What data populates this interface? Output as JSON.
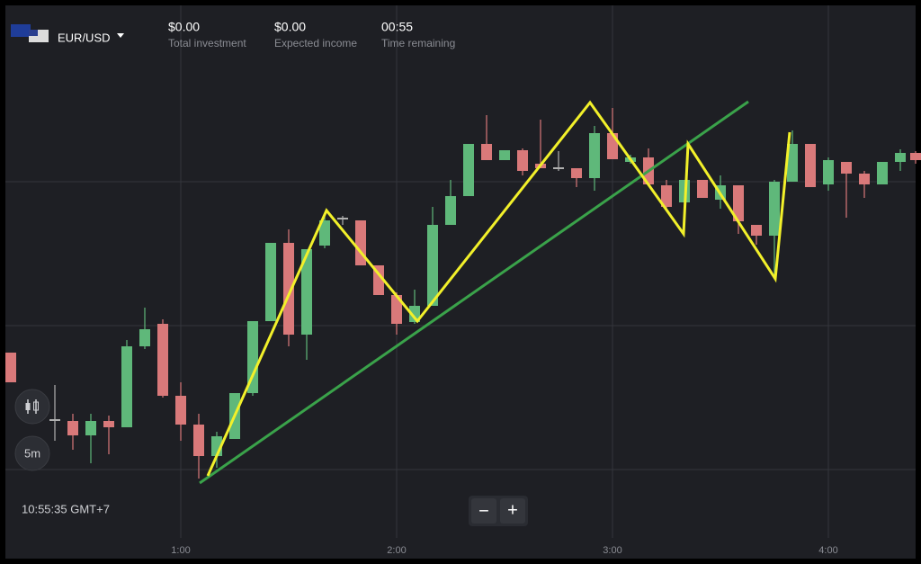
{
  "header": {
    "pair": "EUR/USD",
    "stats": [
      {
        "value": "$0.00",
        "label": "Total investment"
      },
      {
        "value": "$0.00",
        "label": "Expected income"
      },
      {
        "value": "00:55",
        "label": "Time remaining"
      }
    ]
  },
  "controls": {
    "timeframe": "5m"
  },
  "footer": {
    "clock": "10:55:35 GMT+7"
  },
  "zoom": {
    "minus": "−",
    "plus": "+"
  },
  "time_axis": {
    "labels": [
      "1:00",
      "2:00",
      "3:00",
      "4:00"
    ]
  }
}
